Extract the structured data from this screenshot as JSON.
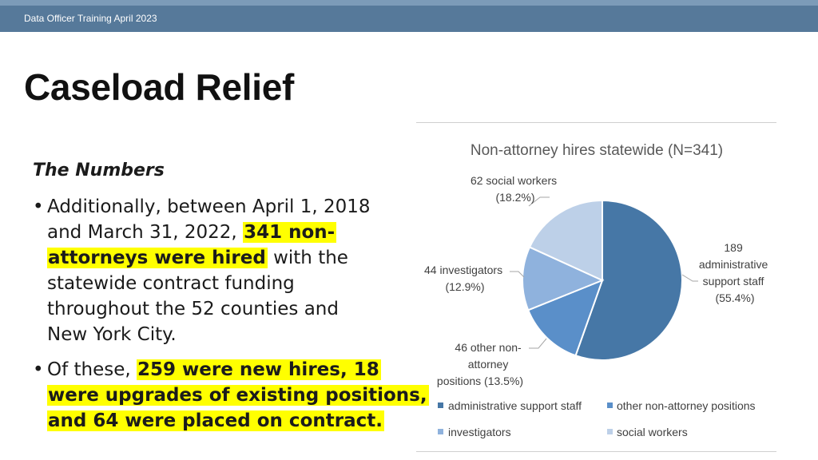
{
  "header": {
    "text": "Data Officer Training April 2023"
  },
  "slide": {
    "title": "Caseload Relief"
  },
  "body": {
    "heading": "The Numbers",
    "bullet1": {
      "line1": "Additionally, between April 1, 2018",
      "line2_pre": "and March 31, 2022, ",
      "line2_hl": "341 non-",
      "line3_hl": "attorneys were hired",
      "line3_post": " with the",
      "line4": "statewide contract funding",
      "line5": "throughout the 52 counties and",
      "line6": "New York City."
    },
    "bullet2": {
      "line1_pre": "Of these, ",
      "line1_hl": "259 were new hires, 18 ",
      "line2_hl": "were upgrades of existing positions,",
      "line3_hl": "and 64 were placed on contract."
    },
    "bullet_char": "•"
  },
  "chart_data": {
    "type": "pie",
    "title": "Non-attorney hires statewide (N=341)",
    "categories": [
      "administrative support staff",
      "other non-attorney positions",
      "investigators",
      "social workers"
    ],
    "values": [
      189,
      46,
      44,
      62
    ],
    "percentages": [
      55.4,
      13.5,
      12.9,
      18.2
    ],
    "colors": [
      "#4677a6",
      "#5a8fc9",
      "#8fb2dd",
      "#bdd0e8"
    ],
    "data_labels": [
      [
        "189",
        "administrative",
        "support staff",
        "(55.4%)"
      ],
      [
        "46 other non-",
        "attorney",
        "positions (13.5%)"
      ],
      [
        "44 investigators",
        "(12.9%)"
      ],
      [
        "62 social workers",
        "(18.2%)"
      ]
    ],
    "legend": [
      "administrative support staff",
      "other non-attorney positions",
      "investigators",
      "social workers"
    ],
    "legend_position": "bottom"
  }
}
